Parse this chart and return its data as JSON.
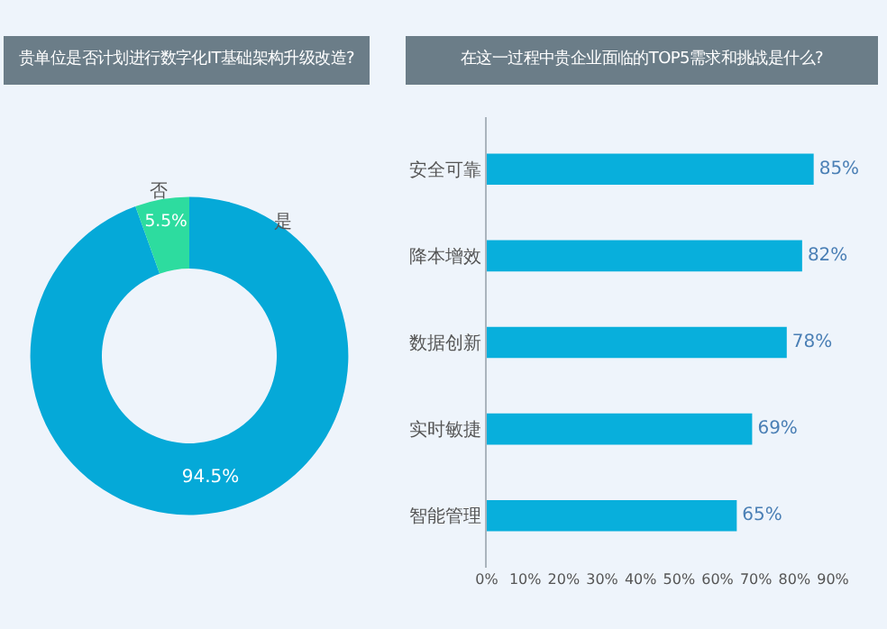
{
  "chart_data": [
    {
      "type": "donut",
      "title": "贵单位是否计划进行数字化IT基础架构升级改造?",
      "categories": [
        "是",
        "否"
      ],
      "values": [
        94.5,
        5.5
      ],
      "colors": [
        "#05a9d8",
        "#2ddc9f"
      ],
      "value_labels": [
        "94.5%",
        "5.5%"
      ],
      "legend": false
    },
    {
      "type": "bar",
      "orientation": "horizontal",
      "title": "在这一过程中贵企业面临的TOP5需求和挑战是什么?",
      "categories": [
        "安全可靠",
        "降本增效",
        "数据创新",
        "实时敏捷",
        "智能管理"
      ],
      "values": [
        85,
        82,
        78,
        69,
        65
      ],
      "color": "#08afdc",
      "value_labels": [
        "85%",
        "82%",
        "78%",
        "69%",
        "65%"
      ],
      "xlim": [
        0,
        90
      ],
      "xticks": [
        {
          "value": 0,
          "label": "0%"
        },
        {
          "value": 10,
          "label": "10%"
        },
        {
          "value": 20,
          "label": "20%"
        },
        {
          "value": 30,
          "label": "30%"
        },
        {
          "value": 40,
          "label": "40%"
        },
        {
          "value": 50,
          "label": "50%"
        },
        {
          "value": 60,
          "label": "60%"
        },
        {
          "value": 70,
          "label": "70%"
        },
        {
          "value": 80,
          "label": "80%"
        },
        {
          "value": 90,
          "label": "90%"
        }
      ],
      "grid": false,
      "legend": false
    }
  ]
}
